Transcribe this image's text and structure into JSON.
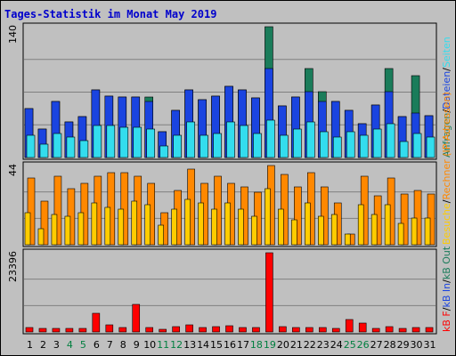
{
  "chart_data": {
    "type": "bar",
    "title": "Tages-Statistik im Monat May 2019",
    "days": [
      "1",
      "2",
      "3",
      "4",
      "5",
      "6",
      "7",
      "8",
      "9",
      "10",
      "11",
      "12",
      "13",
      "14",
      "15",
      "16",
      "17",
      "18",
      "19",
      "20",
      "21",
      "22",
      "23",
      "24",
      "25",
      "26",
      "27",
      "28",
      "29",
      "30",
      "31"
    ],
    "weekend_days": [
      4,
      5,
      11,
      12,
      18,
      19,
      25,
      26
    ],
    "colors": {
      "hits": "#1a7c5a",
      "files": "#1a44e0",
      "pages": "#33ddee",
      "visits": "#ffcc00",
      "sites": "#ff8800",
      "kbytes": "#ff0000",
      "weekday_label": "#000000",
      "weekend_label": "#007f3f",
      "background": "#c0c0c0",
      "grid": "#808080"
    },
    "panels": [
      {
        "name": "hits-files-pages",
        "ymax_label": "140",
        "ymax": 140,
        "right_label": [
          {
            "text": "Anfragen",
            "color": "#1a7c5a"
          },
          {
            "text": "/",
            "color": "#000000"
          },
          {
            "text": "Dateien",
            "color": "#1a44e0"
          },
          {
            "text": "/",
            "color": "#000000"
          },
          {
            "text": "Seiten",
            "color": "#33ddee"
          }
        ],
        "series": [
          {
            "name": "Anfragen",
            "values": [
              52,
              30,
              60,
              38,
              44,
              72,
              66,
              65,
              65,
              65,
              28,
              50,
              72,
              62,
              66,
              76,
              72,
              64,
              140,
              55,
              65,
              95,
              70,
              60,
              50,
              36,
              56,
              95,
              44,
              88,
              45
            ]
          },
          {
            "name": "Dateien",
            "values": [
              52,
              30,
              60,
              38,
              44,
              72,
              66,
              65,
              65,
              60,
              28,
              50,
              72,
              62,
              66,
              76,
              72,
              64,
              95,
              55,
              65,
              70,
              60,
              60,
              50,
              36,
              56,
              70,
              44,
              48,
              45
            ]
          },
          {
            "name": "Seiten",
            "values": [
              24,
              14,
              26,
              22,
              18,
              34,
              34,
              32,
              32,
              30,
              12,
              24,
              38,
              24,
              26,
              38,
              34,
              26,
              40,
              24,
              30,
              38,
              28,
              22,
              28,
              24,
              30,
              36,
              17,
              26,
              22
            ]
          }
        ]
      },
      {
        "name": "visits-sites",
        "ymax_label": "44",
        "ymax": 44,
        "right_label": [
          {
            "text": "Besuche",
            "color": "#ffcc00"
          },
          {
            "text": "/",
            "color": "#000000"
          },
          {
            "text": "Rechner (IP-Adressen)",
            "color": "#ff8800"
          }
        ],
        "series": [
          {
            "name": "Besuche",
            "values": [
              18,
              9,
              17,
              16,
              18,
              23,
              21,
              20,
              24,
              22,
              11,
              20,
              25,
              23,
              20,
              23,
              20,
              16,
              31,
              20,
              14,
              23,
              16,
              17,
              6,
              22,
              17,
              22,
              12,
              15,
              15
            ]
          },
          {
            "name": "Rechner",
            "values": [
              37,
              24,
              38,
              31,
              34,
              38,
              40,
              40,
              38,
              34,
              18,
              30,
              42,
              34,
              38,
              34,
              32,
              29,
              44,
              39,
              32,
              40,
              32,
              23,
              6,
              38,
              27,
              37,
              28,
              30,
              28
            ]
          }
        ]
      },
      {
        "name": "kbytes",
        "ymax_label": "23396",
        "ymax": 23396,
        "right_label": [
          {
            "text": "kB F",
            "color": "#ff0000"
          },
          {
            "text": "/",
            "color": "#000000"
          },
          {
            "text": "kB In",
            "color": "#1a44e0"
          },
          {
            "text": "/",
            "color": "#000000"
          },
          {
            "text": "kB Out",
            "color": "#1a7c5a"
          }
        ],
        "series": [
          {
            "name": "kB F",
            "values": [
              1300,
              1000,
              1100,
              1000,
              1100,
              5400,
              2100,
              1300,
              8100,
              1300,
              700,
              1700,
              2100,
              1300,
              1500,
              1800,
              1300,
              1300,
              23396,
              1500,
              1400,
              1400,
              1300,
              1000,
              3600,
              2600,
              1100,
              1500,
              1000,
              1300,
              1300
            ]
          }
        ]
      }
    ]
  }
}
